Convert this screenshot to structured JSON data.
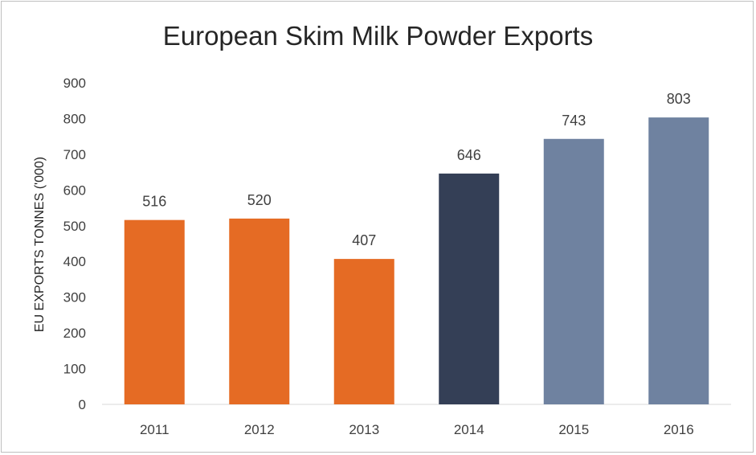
{
  "chart_data": {
    "type": "bar",
    "title": "European Skim Milk Powder Exports",
    "xlabel": "",
    "ylabel": "EU EXPORTS TONNES ('000)",
    "categories": [
      "2011",
      "2012",
      "2013",
      "2014",
      "2015",
      "2016"
    ],
    "values": [
      516,
      520,
      407,
      646,
      743,
      803
    ],
    "data_labels": [
      "516",
      "520",
      "407",
      "646",
      "743",
      "803"
    ],
    "ylim": [
      0,
      900
    ],
    "yticks": [
      0,
      100,
      200,
      300,
      400,
      500,
      600,
      700,
      800,
      900
    ],
    "ytick_labels": [
      "0",
      "100",
      "200",
      "300",
      "400",
      "500",
      "600",
      "700",
      "800",
      "900"
    ],
    "grid": false,
    "bar_colors": [
      "#e56b24",
      "#e56b24",
      "#e56b24",
      "#343f56",
      "#6f82a0",
      "#6f82a0"
    ]
  }
}
